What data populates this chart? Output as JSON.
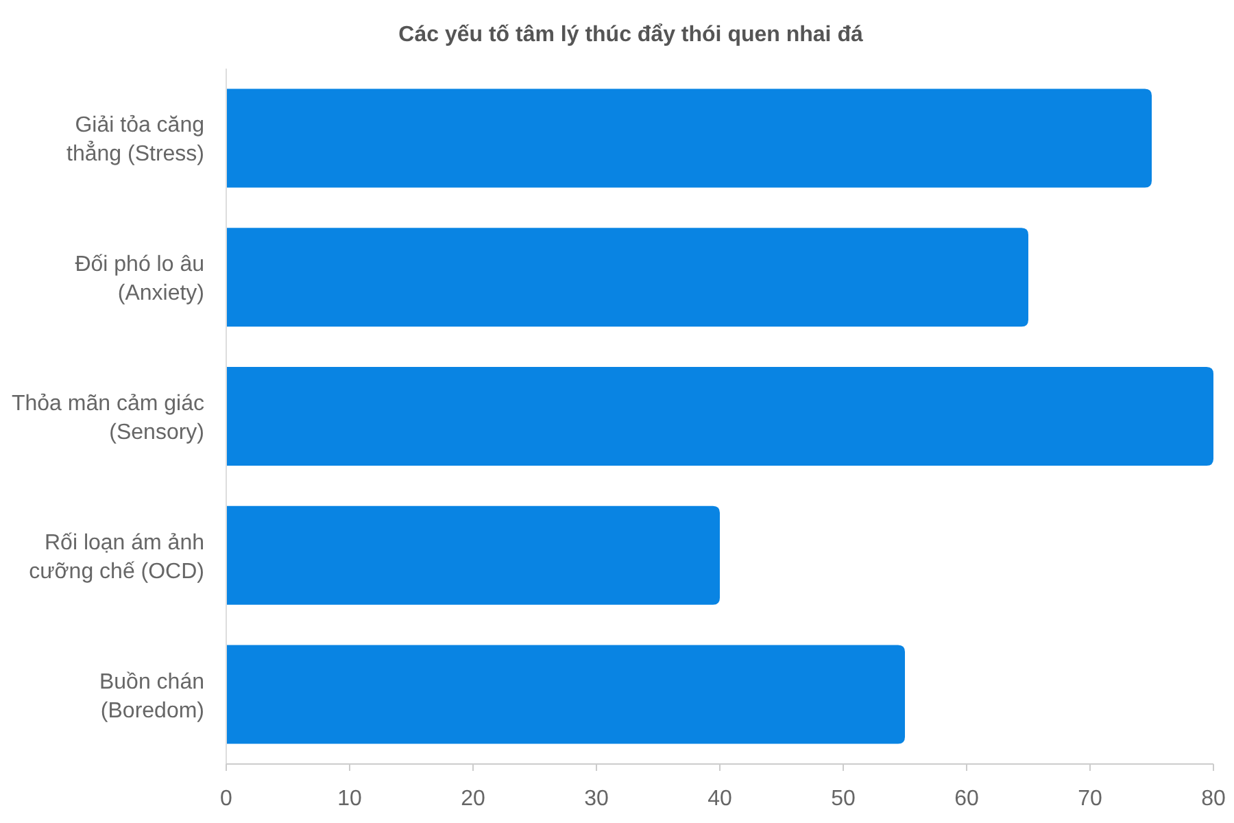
{
  "chart_data": {
    "type": "bar",
    "orientation": "horizontal",
    "title": "Các yếu tố tâm lý thúc đẩy thói quen nhai đá",
    "categories": [
      "Giải tỏa căng thẳng (Stress)",
      "Đối phó lo âu (Anxiety)",
      "Thỏa mãn cảm giác (Sensory)",
      "Rối loạn ám ảnh cưỡng chế (OCD)",
      "Buồn chán (Boredom)"
    ],
    "values": [
      75,
      65,
      80,
      40,
      55
    ],
    "color": "#0984e3",
    "xlim": [
      0,
      80
    ],
    "xticks": [
      0,
      10,
      20,
      30,
      40,
      50,
      60,
      70,
      80
    ],
    "grid": false
  }
}
